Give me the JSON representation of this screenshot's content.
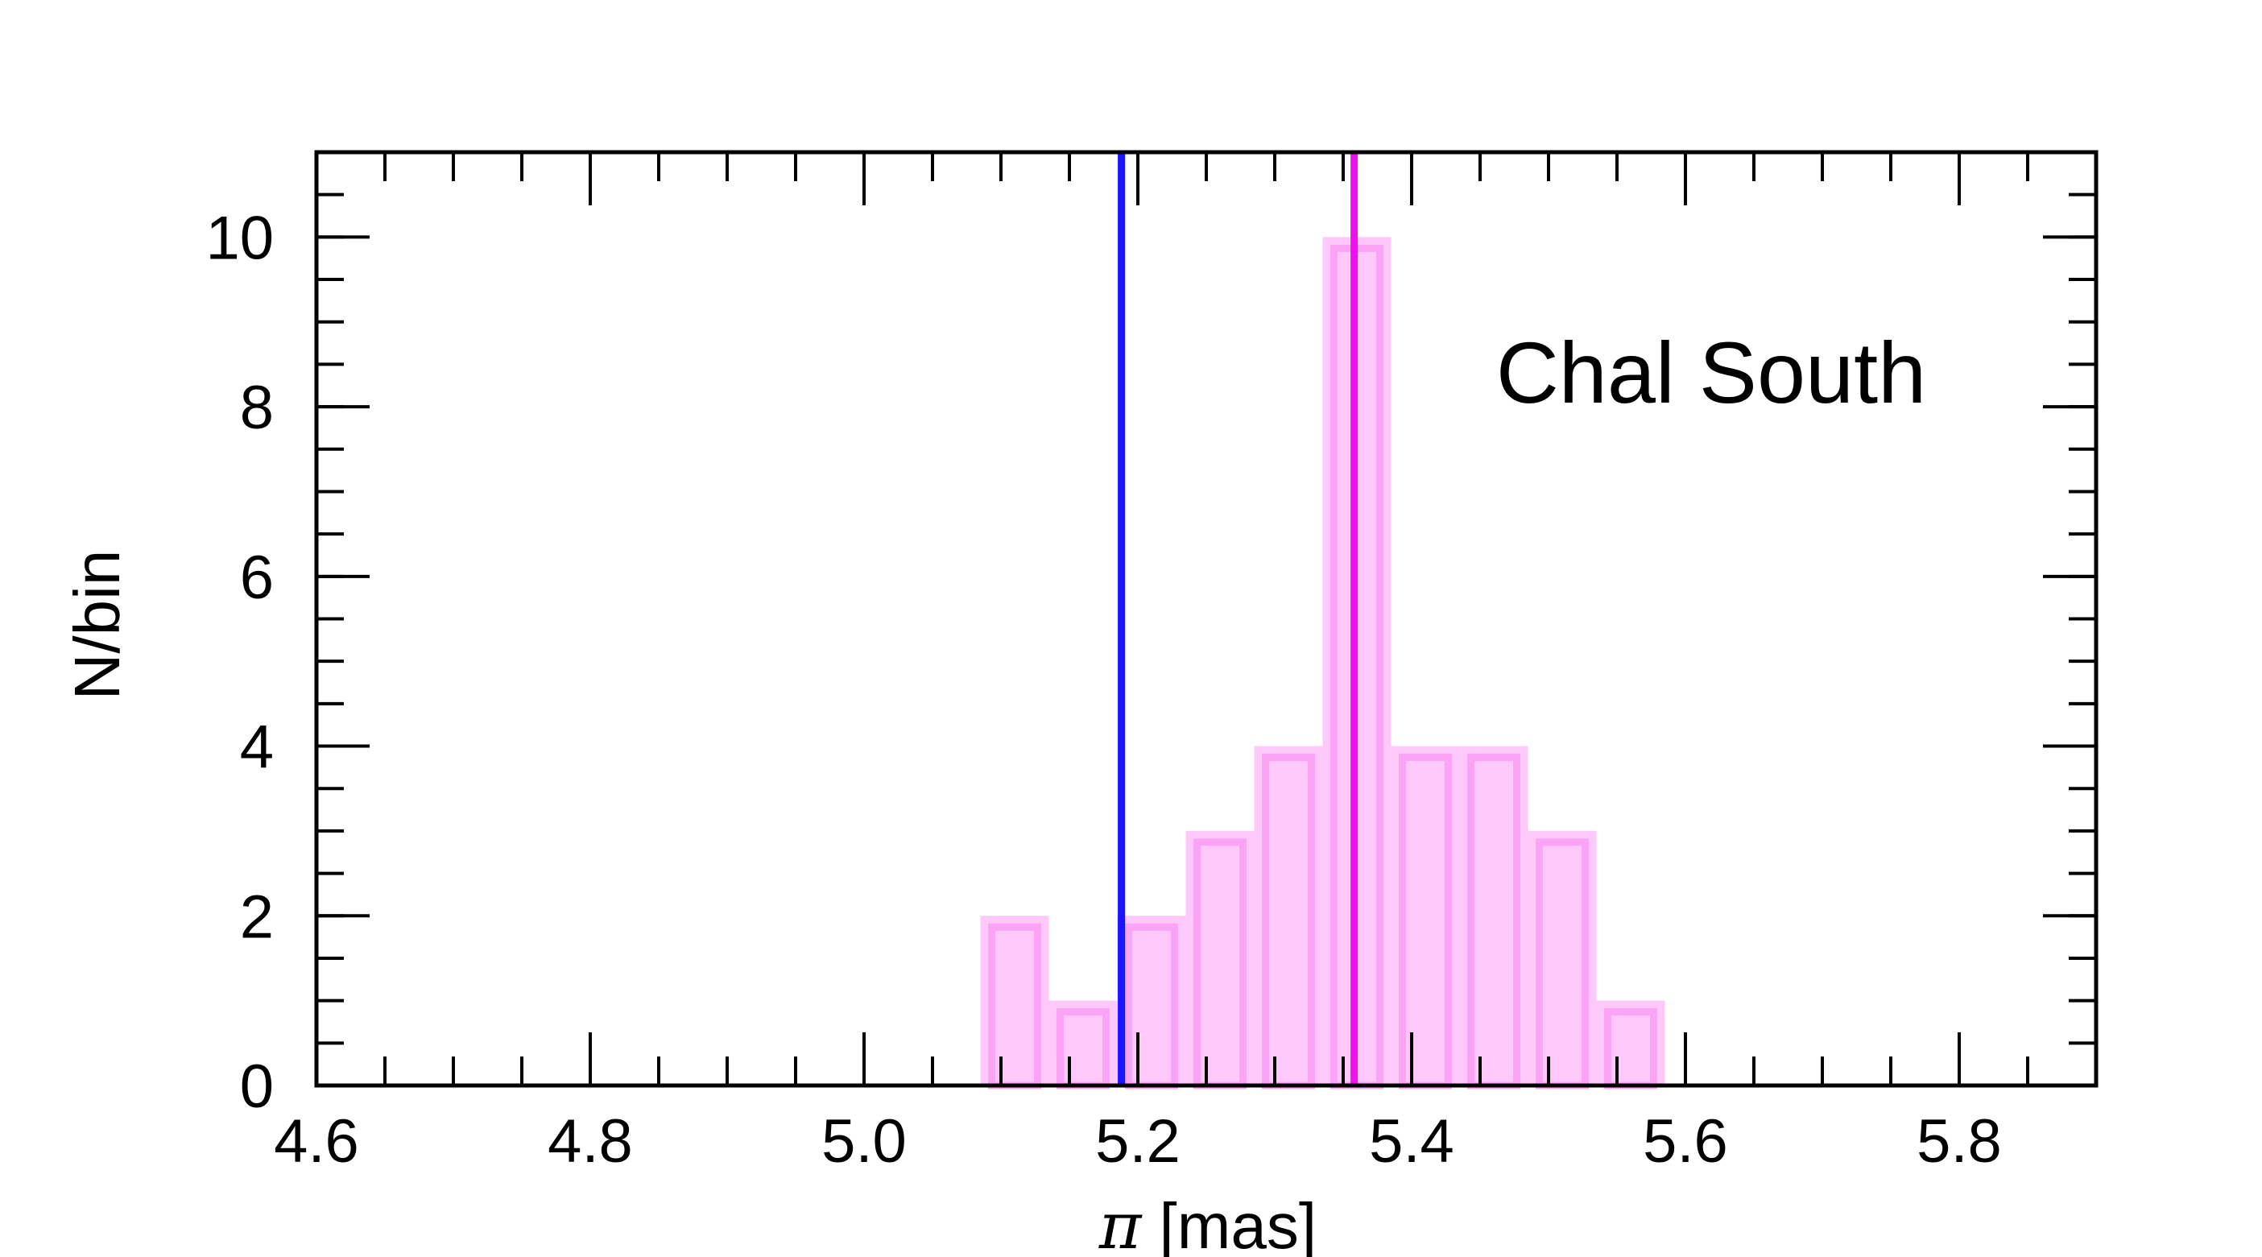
{
  "chart_data": {
    "type": "bar",
    "title": "",
    "xlabel_symbol": "π",
    "xlabel_unit": "[mas]",
    "ylabel": "N/bin",
    "annotation": "Chal South",
    "xlim": [
      4.6,
      5.9
    ],
    "ylim": [
      0,
      11
    ],
    "x_ticks": [
      4.6,
      4.8,
      5.0,
      5.2,
      5.4,
      5.6,
      5.8
    ],
    "x_tick_labels": [
      "4.6",
      "4.8",
      "5.0",
      "5.2",
      "5.4",
      "5.6",
      "5.8"
    ],
    "y_ticks": [
      0,
      2,
      4,
      6,
      8,
      10
    ],
    "y_tick_labels": [
      "0",
      "2",
      "4",
      "6",
      "8",
      "10"
    ],
    "x_minor_step": 0.05,
    "y_minor_step": 0.5,
    "bin_width": 0.05,
    "bins": [
      {
        "x0": 5.085,
        "count": 2
      },
      {
        "x0": 5.135,
        "count": 1
      },
      {
        "x0": 5.185,
        "count": 2
      },
      {
        "x0": 5.235,
        "count": 3
      },
      {
        "x0": 5.285,
        "count": 4
      },
      {
        "x0": 5.335,
        "count": 10
      },
      {
        "x0": 5.385,
        "count": 4
      },
      {
        "x0": 5.435,
        "count": 4
      },
      {
        "x0": 5.485,
        "count": 3
      },
      {
        "x0": 5.535,
        "count": 1
      }
    ],
    "vlines": [
      {
        "x": 5.188,
        "color": "#1a14ff"
      },
      {
        "x": 5.358,
        "color": "#ee11ee"
      }
    ],
    "colors": {
      "bar_fill": "#ffc8fb",
      "bar_stroke": "#fba4f6",
      "axis": "#000000"
    }
  }
}
